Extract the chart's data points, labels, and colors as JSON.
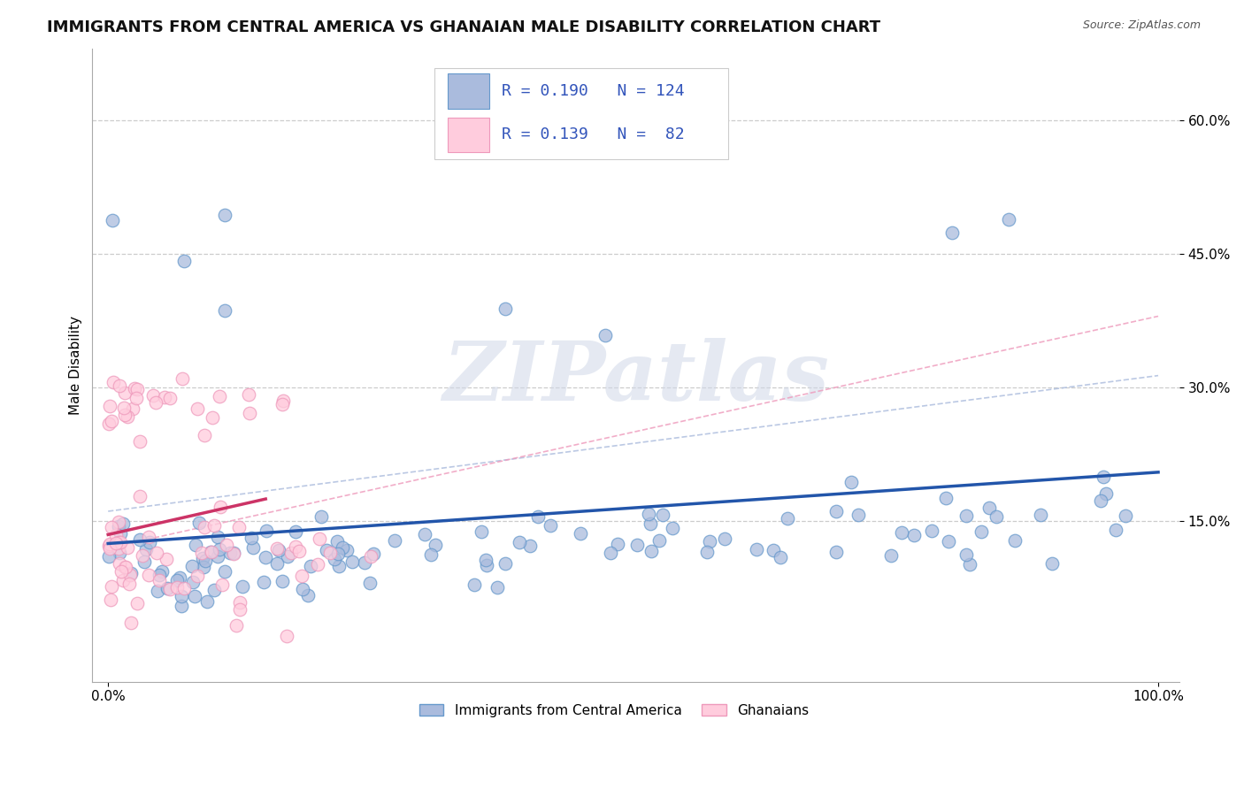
{
  "title": "IMMIGRANTS FROM CENTRAL AMERICA VS GHANAIAN MALE DISABILITY CORRELATION CHART",
  "source": "Source: ZipAtlas.com",
  "ylabel": "Male Disability",
  "xlim": [
    0.0,
    1.0
  ],
  "ylim": [
    -0.03,
    0.68
  ],
  "xtick_vals": [
    0.0,
    1.0
  ],
  "xtick_labels": [
    "0.0%",
    "100.0%"
  ],
  "ytick_vals": [
    0.15,
    0.3,
    0.45,
    0.6
  ],
  "ytick_labels": [
    "15.0%",
    "30.0%",
    "45.0%",
    "60.0%"
  ],
  "grid_color": "#cccccc",
  "background_color": "#ffffff",
  "series1": {
    "name": "Immigrants from Central America",
    "R": 0.19,
    "N": 124,
    "scatter_color": "#aabbdd",
    "edge_color": "#6699cc",
    "line_color": "#2255aa",
    "dash_color": "#aabbdd"
  },
  "series2": {
    "name": "Ghanaians",
    "R": 0.139,
    "N": 82,
    "scatter_color": "#ffccdd",
    "edge_color": "#ee99bb",
    "line_color": "#cc3366",
    "dash_color": "#ee99bb"
  },
  "watermark": "ZIPatlas",
  "title_fontsize": 13,
  "axis_label_fontsize": 11,
  "tick_fontsize": 11,
  "legend_fontsize": 13
}
